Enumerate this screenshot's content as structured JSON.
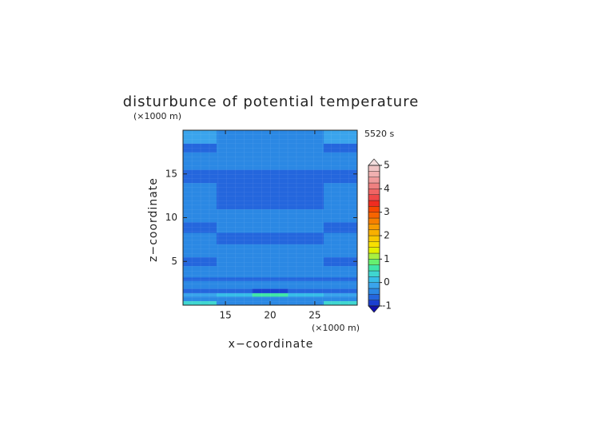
{
  "chart_data": {
    "type": "contour",
    "title": "disturbunce of potential temperature",
    "x_label": "x−coordinate",
    "y_label": "z−coordinate",
    "x_unit": "(×1000 m)",
    "y_unit": "(×1000 m)",
    "time_label": "5520 s",
    "xlim": [
      10.25,
      29.75
    ],
    "ylim": [
      0,
      20
    ],
    "xticks": [
      15,
      20,
      25
    ],
    "yticks": [
      5,
      10,
      15
    ],
    "field": {
      "x_edges": [
        10.25,
        14,
        18,
        22,
        26,
        29.75
      ],
      "z_edges": [
        0,
        0.5,
        1.0,
        1.4,
        1.9,
        2.8,
        3.2,
        4.5,
        5.5,
        7,
        8.3,
        9.5,
        11,
        14,
        15.5,
        17.5,
        18.5,
        20
      ],
      "values": [
        [
          0.4,
          -0.3,
          -0.3,
          -0.3,
          0.4
        ],
        [
          -0.4,
          -0.4,
          -0.4,
          -0.4,
          -0.4
        ],
        [
          -0.1,
          0.2,
          0.5,
          0.2,
          -0.1
        ],
        [
          -0.6,
          -0.7,
          -0.8,
          -0.7,
          -0.6
        ],
        [
          -0.3,
          -0.3,
          -0.3,
          -0.3,
          -0.3
        ],
        [
          -0.6,
          -0.6,
          -0.6,
          -0.6,
          -0.6
        ],
        [
          -0.3,
          -0.3,
          -0.3,
          -0.3,
          -0.3
        ],
        [
          -0.55,
          -0.3,
          -0.3,
          -0.3,
          -0.55
        ],
        [
          -0.3,
          -0.3,
          -0.3,
          -0.3,
          -0.3
        ],
        [
          -0.3,
          -0.6,
          -0.6,
          -0.6,
          -0.3
        ],
        [
          -0.6,
          -0.3,
          -0.3,
          -0.3,
          -0.6
        ],
        [
          -0.3,
          -0.3,
          -0.3,
          -0.3,
          -0.3
        ],
        [
          -0.3,
          -0.55,
          -0.6,
          -0.55,
          -0.3
        ],
        [
          -0.55,
          -0.55,
          -0.55,
          -0.55,
          -0.55
        ],
        [
          -0.3,
          -0.3,
          -0.3,
          -0.3,
          -0.3
        ],
        [
          -0.55,
          -0.4,
          -0.4,
          -0.4,
          -0.55
        ],
        [
          -0.2,
          -0.3,
          -0.3,
          -0.3,
          -0.2
        ]
      ]
    },
    "colorbar": {
      "levels": [
        -1,
        -0.75,
        -0.5,
        -0.25,
        0,
        0.25,
        0.5,
        0.75,
        1,
        1.25,
        1.5,
        1.75,
        2,
        2.25,
        2.5,
        2.75,
        3,
        3.25,
        3.5,
        3.75,
        4,
        4.25,
        4.5,
        4.75,
        5
      ],
      "colors": [
        "#1a3fd0",
        "#2466dd",
        "#2b88e4",
        "#3aa4ec",
        "#38bde8",
        "#3fd6d0",
        "#40e6a8",
        "#66f070",
        "#a8f040",
        "#e2f000",
        "#f8e000",
        "#f8c800",
        "#f8b000",
        "#f89c00",
        "#f88000",
        "#f86400",
        "#f84800",
        "#f02c20",
        "#f04848",
        "#f06464",
        "#f08080",
        "#f09a9a",
        "#f0b0b0",
        "#f0c4c4"
      ],
      "under_color": "#1010b0",
      "over_color": "#f4dede",
      "ticks": [
        -1,
        0,
        1,
        2,
        3,
        4,
        5
      ]
    }
  }
}
